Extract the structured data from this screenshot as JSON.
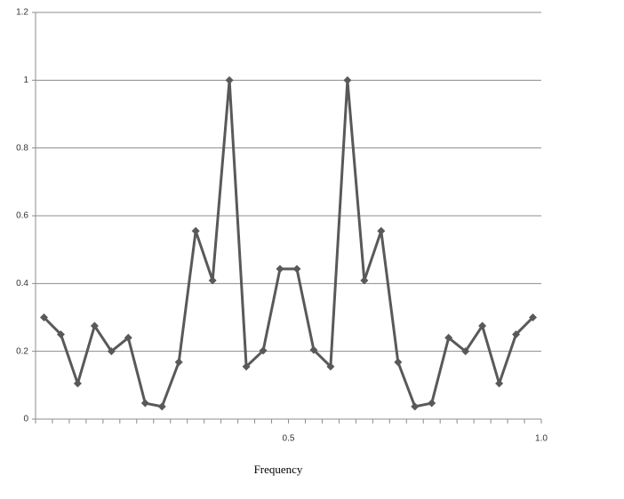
{
  "chart_data": {
    "type": "line",
    "x_label": "Frequency",
    "x": [
      0.0167,
      0.05,
      0.0833,
      0.1167,
      0.15,
      0.1833,
      0.2167,
      0.25,
      0.2833,
      0.3167,
      0.35,
      0.3833,
      0.4167,
      0.45,
      0.4833,
      0.5167,
      0.55,
      0.5833,
      0.6167,
      0.65,
      0.6833,
      0.7167,
      0.75,
      0.7833,
      0.8167,
      0.85,
      0.8833,
      0.9167,
      0.95,
      0.9833
    ],
    "values": [
      0.3,
      0.25,
      0.105,
      0.275,
      0.2,
      0.24,
      0.047,
      0.037,
      0.168,
      0.555,
      0.409,
      1.0,
      0.155,
      0.202,
      0.443,
      0.443,
      0.204,
      0.155,
      1.0,
      0.409,
      0.555,
      0.168,
      0.037,
      0.047,
      0.24,
      0.2,
      0.275,
      0.105,
      0.25,
      0.3
    ],
    "color": "#595959",
    "xlim": [
      0,
      1
    ],
    "xticks": [
      {
        "value": 0.5,
        "label": "0.5"
      },
      {
        "value": 1,
        "label": "1.0"
      }
    ],
    "ylim": [
      0,
      1.2
    ],
    "yticks": [
      0,
      0.2,
      0.4,
      0.6,
      0.8,
      1,
      1.2
    ],
    "grid": true
  }
}
